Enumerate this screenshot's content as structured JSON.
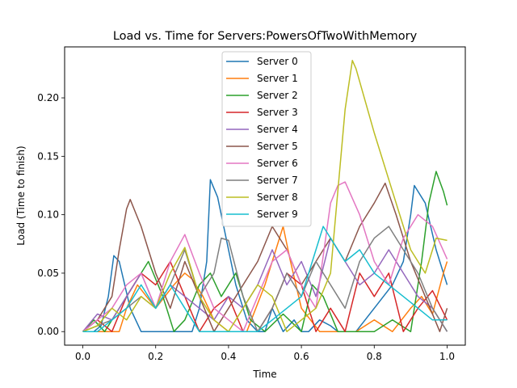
{
  "chart_data": {
    "type": "line",
    "title": "Load vs. Time for Servers:PowersOfTwoWithMemory",
    "xlabel": "Time",
    "ylabel": "Load (Time to finish)",
    "xlim": [
      -0.05,
      1.05
    ],
    "ylim": [
      -0.0116,
      0.2436
    ],
    "xticks": [
      0.0,
      0.2,
      0.4,
      0.6,
      0.8,
      1.0
    ],
    "xtick_labels": [
      "0.0",
      "0.2",
      "0.4",
      "0.6",
      "0.8",
      "1.0"
    ],
    "yticks": [
      0.0,
      0.05,
      0.1,
      0.15,
      0.2
    ],
    "ytick_labels": [
      "0.00",
      "0.05",
      "0.10",
      "0.15",
      "0.20"
    ],
    "grid": false,
    "legend_position": "top-center",
    "series": [
      {
        "name": "Server 0",
        "color": "#1f77b4",
        "x": [
          0.0,
          0.03,
          0.05,
          0.07,
          0.085,
          0.1,
          0.13,
          0.16,
          0.2,
          0.25,
          0.3,
          0.32,
          0.34,
          0.35,
          0.37,
          0.39,
          0.42,
          0.45,
          0.48,
          0.5,
          0.52,
          0.55,
          0.58,
          0.6,
          0.62,
          0.65,
          0.68,
          0.7,
          0.75,
          0.8,
          0.85,
          0.88,
          0.9,
          0.91,
          0.94,
          0.97,
          1.0
        ],
        "y": [
          0.0,
          0.0,
          0.005,
          0.03,
          0.065,
          0.06,
          0.02,
          0.0,
          0.0,
          0.0,
          0.0,
          0.02,
          0.06,
          0.13,
          0.115,
          0.085,
          0.04,
          0.01,
          0.0,
          0.0,
          0.02,
          0.0,
          0.01,
          0.0,
          0.0,
          0.01,
          0.005,
          0.0,
          0.0,
          0.02,
          0.04,
          0.06,
          0.1,
          0.125,
          0.11,
          0.07,
          0.04
        ]
      },
      {
        "name": "Server 1",
        "color": "#ff7f0e",
        "x": [
          0.0,
          0.05,
          0.1,
          0.12,
          0.15,
          0.2,
          0.25,
          0.28,
          0.3,
          0.33,
          0.36,
          0.4,
          0.45,
          0.5,
          0.53,
          0.55,
          0.57,
          0.6,
          0.65,
          0.7,
          0.75,
          0.8,
          0.85,
          0.9,
          0.93,
          0.96,
          0.99,
          1.0
        ],
        "y": [
          0.0,
          0.0,
          0.0,
          0.02,
          0.04,
          0.02,
          0.04,
          0.05,
          0.045,
          0.03,
          0.01,
          0.0,
          0.0,
          0.04,
          0.07,
          0.09,
          0.06,
          0.02,
          0.0,
          0.0,
          0.0,
          0.01,
          0.0,
          0.02,
          0.03,
          0.015,
          0.05,
          0.06
        ]
      },
      {
        "name": "Server 2",
        "color": "#2ca02c",
        "x": [
          0.0,
          0.03,
          0.06,
          0.1,
          0.14,
          0.18,
          0.22,
          0.25,
          0.28,
          0.32,
          0.35,
          0.38,
          0.42,
          0.46,
          0.5,
          0.55,
          0.6,
          0.63,
          0.66,
          0.7,
          0.75,
          0.8,
          0.85,
          0.9,
          0.93,
          0.95,
          0.97,
          0.99,
          1.0
        ],
        "y": [
          0.0,
          0.01,
          0.0,
          0.02,
          0.04,
          0.06,
          0.03,
          0.0,
          0.01,
          0.04,
          0.05,
          0.03,
          0.05,
          0.01,
          0.0,
          0.015,
          0.0,
          0.04,
          0.03,
          0.0,
          0.0,
          0.0,
          0.01,
          0.0,
          0.06,
          0.11,
          0.137,
          0.12,
          0.108
        ]
      },
      {
        "name": "Server 3",
        "color": "#d62728",
        "x": [
          0.0,
          0.04,
          0.08,
          0.12,
          0.16,
          0.2,
          0.24,
          0.28,
          0.32,
          0.36,
          0.4,
          0.44,
          0.48,
          0.52,
          0.56,
          0.6,
          0.64,
          0.68,
          0.72,
          0.76,
          0.8,
          0.84,
          0.88,
          0.92,
          0.96,
          1.0
        ],
        "y": [
          0.0,
          0.01,
          0.0,
          0.03,
          0.05,
          0.04,
          0.06,
          0.03,
          0.0,
          0.02,
          0.03,
          0.0,
          0.0,
          0.02,
          0.05,
          0.04,
          0.0,
          0.02,
          0.0,
          0.05,
          0.03,
          0.05,
          0.0,
          0.02,
          0.035,
          0.01
        ]
      },
      {
        "name": "Server 4",
        "color": "#9467bd",
        "x": [
          0.0,
          0.04,
          0.08,
          0.12,
          0.16,
          0.2,
          0.24,
          0.28,
          0.32,
          0.36,
          0.4,
          0.44,
          0.48,
          0.52,
          0.56,
          0.6,
          0.64,
          0.68,
          0.72,
          0.76,
          0.8,
          0.84,
          0.88,
          0.92,
          0.96,
          1.0
        ],
        "y": [
          0.0,
          0.015,
          0.01,
          0.03,
          0.05,
          0.02,
          0.04,
          0.03,
          0.02,
          0.01,
          0.03,
          0.02,
          0.04,
          0.07,
          0.04,
          0.06,
          0.03,
          0.08,
          0.06,
          0.04,
          0.05,
          0.07,
          0.05,
          0.03,
          0.02,
          0.0
        ]
      },
      {
        "name": "Server 5",
        "color": "#8c564b",
        "x": [
          0.0,
          0.04,
          0.08,
          0.1,
          0.12,
          0.13,
          0.16,
          0.2,
          0.24,
          0.28,
          0.32,
          0.36,
          0.4,
          0.44,
          0.48,
          0.52,
          0.56,
          0.6,
          0.64,
          0.68,
          0.72,
          0.76,
          0.8,
          0.83,
          0.86,
          0.9,
          0.94,
          0.98,
          1.0
        ],
        "y": [
          0.0,
          0.01,
          0.03,
          0.07,
          0.105,
          0.113,
          0.09,
          0.05,
          0.02,
          0.06,
          0.03,
          0.0,
          0.02,
          0.04,
          0.06,
          0.09,
          0.07,
          0.04,
          0.06,
          0.08,
          0.06,
          0.09,
          0.11,
          0.127,
          0.1,
          0.06,
          0.03,
          0.0,
          0.02
        ]
      },
      {
        "name": "Server 6",
        "color": "#e377c2",
        "x": [
          0.0,
          0.04,
          0.08,
          0.12,
          0.16,
          0.2,
          0.24,
          0.28,
          0.32,
          0.36,
          0.4,
          0.44,
          0.48,
          0.52,
          0.56,
          0.6,
          0.64,
          0.68,
          0.7,
          0.72,
          0.76,
          0.8,
          0.84,
          0.88,
          0.92,
          0.96,
          1.0
        ],
        "y": [
          0.0,
          0.01,
          0.02,
          0.04,
          0.05,
          0.02,
          0.06,
          0.083,
          0.05,
          0.02,
          0.01,
          0.0,
          0.03,
          0.06,
          0.07,
          0.04,
          0.02,
          0.11,
          0.125,
          0.128,
          0.1,
          0.06,
          0.04,
          0.08,
          0.1,
          0.09,
          0.062
        ]
      },
      {
        "name": "Server 7",
        "color": "#7f7f7f",
        "x": [
          0.0,
          0.04,
          0.08,
          0.12,
          0.16,
          0.2,
          0.24,
          0.28,
          0.32,
          0.36,
          0.38,
          0.4,
          0.44,
          0.48,
          0.52,
          0.56,
          0.6,
          0.64,
          0.68,
          0.72,
          0.76,
          0.8,
          0.84,
          0.88,
          0.92,
          0.96,
          1.0
        ],
        "y": [
          0.0,
          0.005,
          0.01,
          0.02,
          0.03,
          0.02,
          0.04,
          0.07,
          0.03,
          0.05,
          0.08,
          0.078,
          0.03,
          0.0,
          0.02,
          0.05,
          0.03,
          0.06,
          0.04,
          0.02,
          0.06,
          0.08,
          0.09,
          0.07,
          0.05,
          0.02,
          0.0
        ]
      },
      {
        "name": "Server 8",
        "color": "#bcbd22",
        "x": [
          0.0,
          0.04,
          0.08,
          0.12,
          0.16,
          0.2,
          0.24,
          0.28,
          0.32,
          0.36,
          0.4,
          0.44,
          0.48,
          0.52,
          0.56,
          0.6,
          0.64,
          0.68,
          0.7,
          0.72,
          0.74,
          0.75,
          0.8,
          0.85,
          0.9,
          0.94,
          0.97,
          1.0
        ],
        "y": [
          0.0,
          0.005,
          0.02,
          0.01,
          0.03,
          0.02,
          0.05,
          0.072,
          0.03,
          0.01,
          0.0,
          0.02,
          0.04,
          0.03,
          0.0,
          0.01,
          0.02,
          0.05,
          0.12,
          0.19,
          0.232,
          0.225,
          0.17,
          0.12,
          0.07,
          0.05,
          0.08,
          0.078
        ]
      },
      {
        "name": "Server 9",
        "color": "#17becf",
        "x": [
          0.0,
          0.04,
          0.08,
          0.12,
          0.16,
          0.2,
          0.24,
          0.28,
          0.32,
          0.36,
          0.4,
          0.44,
          0.48,
          0.52,
          0.56,
          0.6,
          0.64,
          0.66,
          0.68,
          0.72,
          0.76,
          0.8,
          0.84,
          0.88,
          0.92,
          0.96,
          1.0
        ],
        "y": [
          0.0,
          0.0,
          0.01,
          0.02,
          0.04,
          0.02,
          0.04,
          0.02,
          0.0,
          0.0,
          0.0,
          0.0,
          0.0,
          0.01,
          0.02,
          0.03,
          0.07,
          0.09,
          0.08,
          0.06,
          0.07,
          0.05,
          0.04,
          0.03,
          0.02,
          0.01,
          0.01
        ]
      }
    ]
  }
}
